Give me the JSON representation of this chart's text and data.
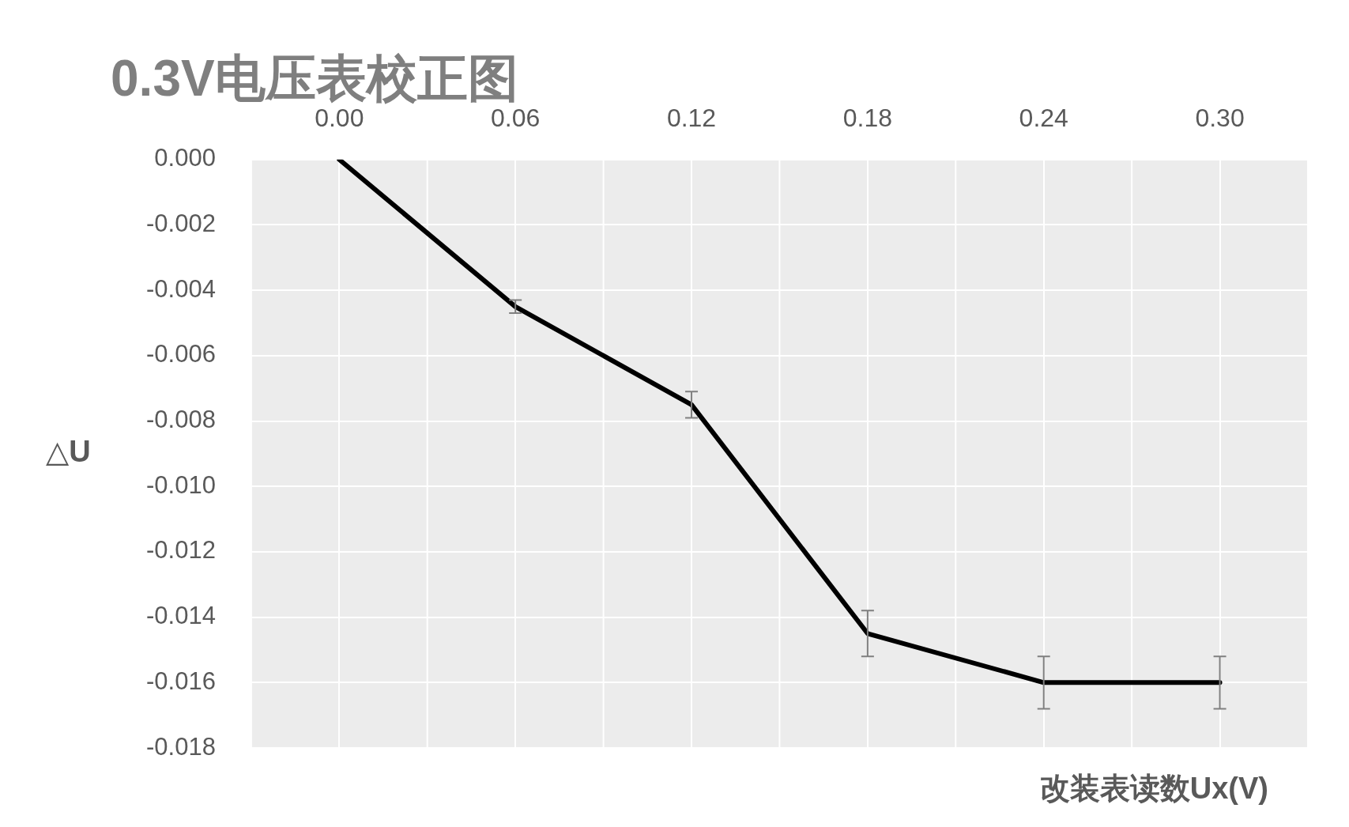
{
  "chart_data": {
    "type": "line",
    "title": "0.3V电压表校正图",
    "xlabel": "改装表读数Ux(V)",
    "ylabel": "△U",
    "categories": [
      "0.00",
      "0.06",
      "0.12",
      "0.18",
      "0.24",
      "0.30"
    ],
    "series": [
      {
        "color": "#000000",
        "values": [
          0,
          -0.0045,
          -0.0075,
          -0.0145,
          -0.016,
          -0.016
        ],
        "errors": [
          null,
          0.0002,
          0.0004,
          0.0007,
          0.0008,
          0.0008
        ]
      }
    ],
    "ylim": [
      -0.018,
      0
    ],
    "yticks": [
      {
        "value": 0,
        "label": "0.000"
      },
      {
        "value": -0.002,
        "label": "-0.002"
      },
      {
        "value": -0.004,
        "label": "-0.004"
      },
      {
        "value": -0.006,
        "label": "-0.006"
      },
      {
        "value": -0.008,
        "label": "-0.008"
      },
      {
        "value": -0.01,
        "label": "-0.010"
      },
      {
        "value": -0.012,
        "label": "-0.012"
      },
      {
        "value": -0.014,
        "label": "-0.014"
      },
      {
        "value": -0.016,
        "label": "-0.016"
      },
      {
        "value": -0.018,
        "label": "-0.018"
      }
    ],
    "grid": true,
    "legend": false,
    "marker": "none",
    "line_style": "solid"
  }
}
